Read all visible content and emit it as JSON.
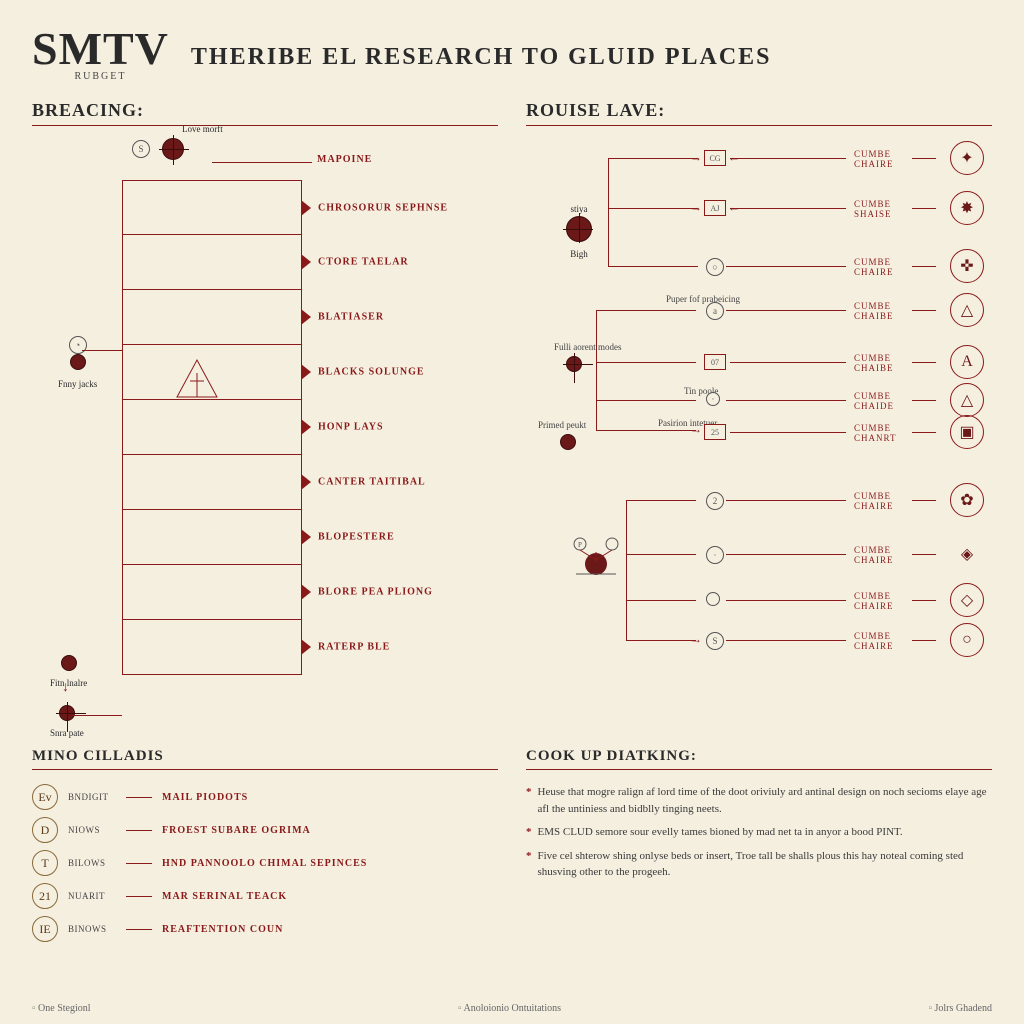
{
  "colors": {
    "bg": "#f5efe0",
    "accent": "#8a1a1a",
    "node": "#6b1818",
    "text": "#2a2a2a",
    "muted": "#555555"
  },
  "header": {
    "logo": "SMTV",
    "logo_sub": "RUBGET",
    "title": "THERIBE EL RESEARCH TO GLUID PLACES"
  },
  "left": {
    "heading": "BREACING:",
    "top_node_label": "Love morft",
    "top_right_label": "MAPOINE",
    "side1_label": "Fnny jacks",
    "side2_label": "Fitn lnalre",
    "side3_label": "Snra pate",
    "rows": [
      "CHROSORUR SEPHNSE",
      "CTORE TAELAR",
      "BLATIASER",
      "BLACKS SOLUNGE",
      "HONP LAYS",
      "CANTER TAITIBAL",
      "BLOPESTERE",
      "BLORE PEA PLIONG",
      "RATERP BLE"
    ]
  },
  "right": {
    "heading": "ROUISE LAVE:",
    "root1_top": "stiya",
    "root1_bot": "Bigh",
    "root2_top": "Fulli aorent modes",
    "root3_top": "Primed peukt",
    "mid_boxes": [
      "CG",
      "AJ",
      "07",
      "25"
    ],
    "mid_caps": [
      "Puper fof prabeicing",
      "Tin poole",
      "Pasirion intetuer"
    ],
    "cumbe1": "CUMBE",
    "cumbe2": "CHAIRE",
    "end_icons": [
      "✦",
      "✸",
      "✜",
      "△",
      "A",
      "△",
      "▣",
      "✿",
      "◈",
      "◇",
      "○"
    ]
  },
  "legend": {
    "heading": "MINO CILLADIS",
    "rows": [
      {
        "b": "Ev",
        "k": "BNDIGIT",
        "v": "MAIL PIODOTS"
      },
      {
        "b": "D",
        "k": "NIOWS",
        "v": "FROEST SUBARE OGRIMA"
      },
      {
        "b": "T",
        "k": "BILOWS",
        "v": "HND PANNOOLO CHIMAL SEPINCES"
      },
      {
        "b": "21",
        "k": "NUARIT",
        "v": "MAR SERINAL TEACK"
      },
      {
        "b": "IE",
        "k": "BINOWS",
        "v": "REAFTENTION COUN"
      }
    ]
  },
  "cook": {
    "heading": "COOK UP DIATKING:",
    "notes": [
      "Heuse that mogre ralign af lord time of the doot oriviuly ard antinal design on noch secioms elaye age afl the untiniess and bidblly tinging neets.",
      "EMS CLUD semore sour evelly tames bioned by mad net ta in anyor a bood PINT.",
      "Five cel shterow shing onlyse beds or insert, Troe tall be shalls plous this hay noteal coming sted shusving other to the progeeh."
    ]
  },
  "footer": {
    "left": "One Stegionl",
    "mid": "Anoloionio Ontuitations",
    "right": "Jolrs Ghadend"
  }
}
